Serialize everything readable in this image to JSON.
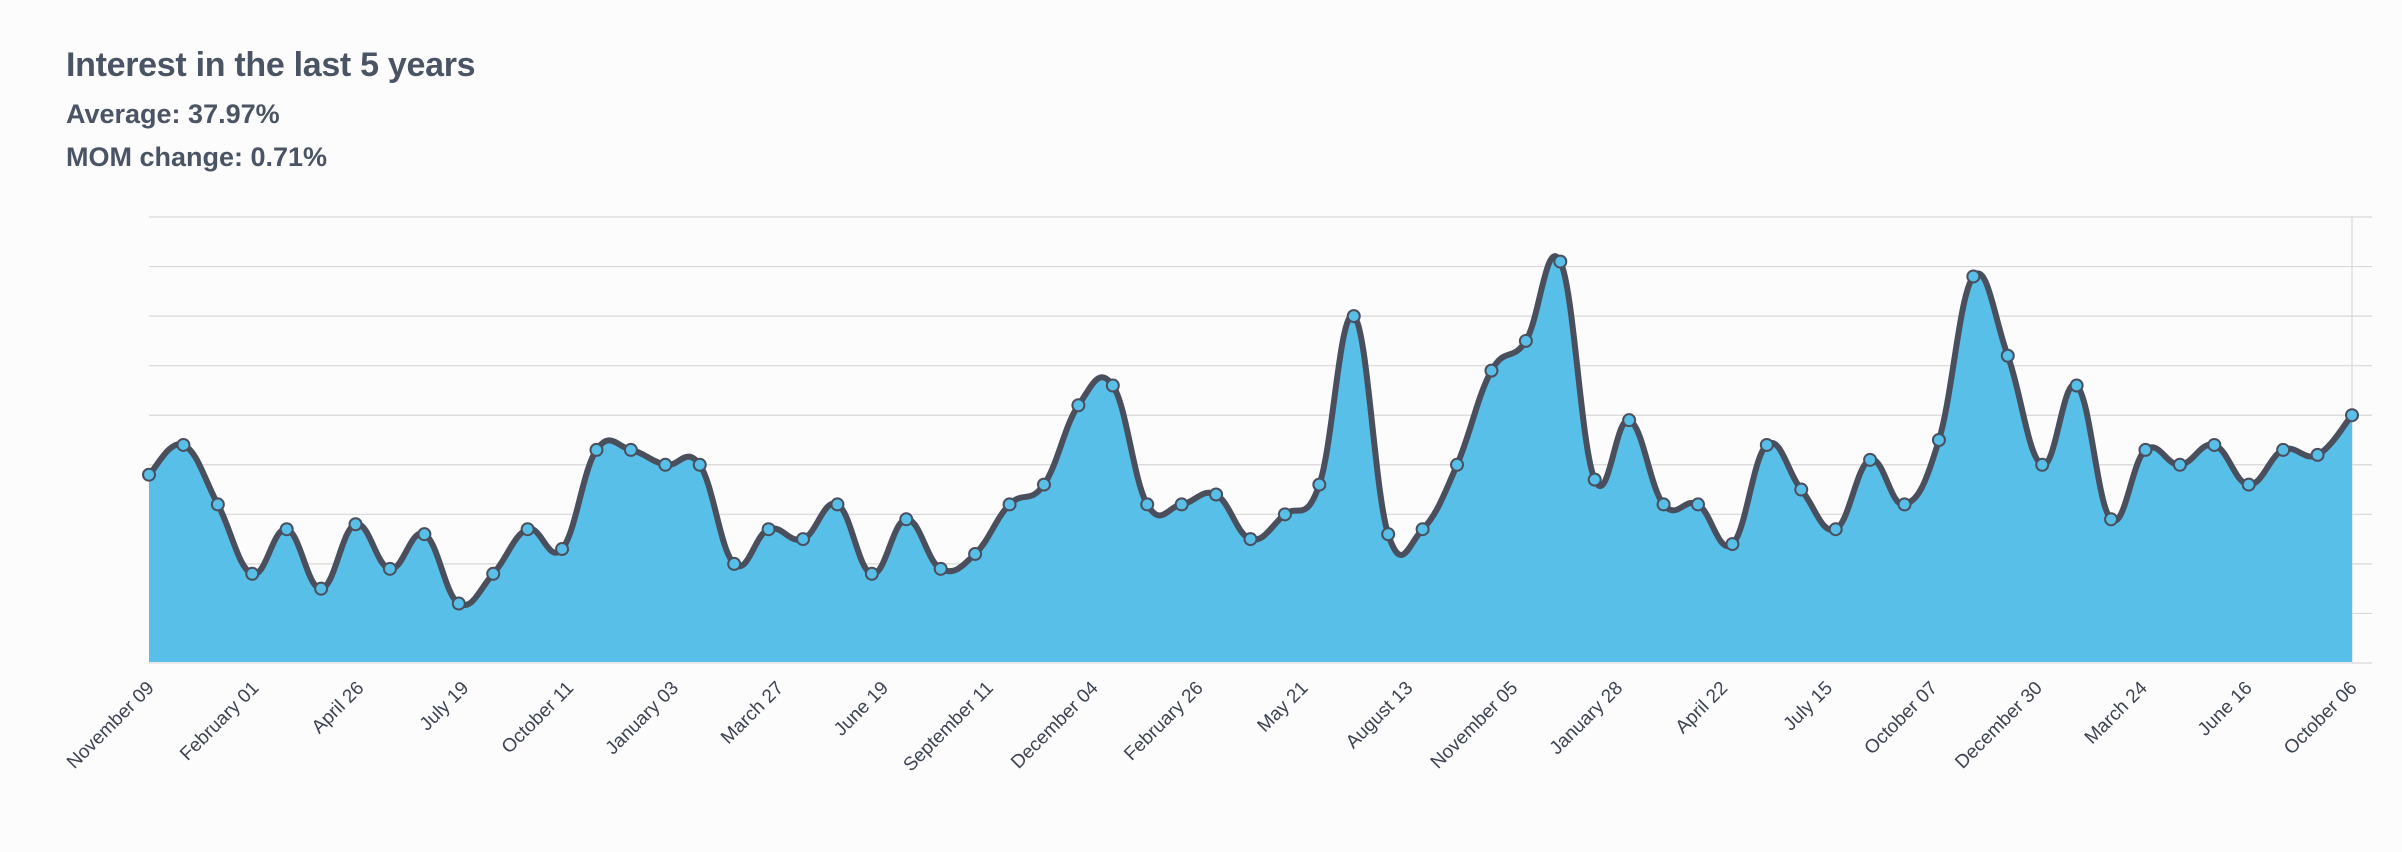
{
  "header": {
    "title": "Interest in the last 5 years",
    "average": "Average: 37.97%",
    "mom_change": "MOM change: 0.71%"
  },
  "colors": {
    "area": "#58bfe8",
    "line": "#4a4f5d",
    "marker": "#58bfe8",
    "grid": "#d8d8d8"
  },
  "chart_data": {
    "type": "area",
    "title": "Interest in the last 5 years",
    "xlabel": "",
    "ylabel": "",
    "ylim": [
      0,
      90
    ],
    "grid": true,
    "legend": "none",
    "tick_labels": [
      "November 09",
      "February 01",
      "April 26",
      "July 19",
      "October 11",
      "January 03",
      "March 27",
      "June 19",
      "September 11",
      "December 04",
      "February 26",
      "May 21",
      "August 13",
      "November 05",
      "January 28",
      "April 22",
      "July 15",
      "October 07",
      "December 30",
      "March 24",
      "June 16",
      "October 06"
    ],
    "series": [
      {
        "values": [
          38,
          44,
          32,
          18,
          27,
          15,
          28,
          19,
          26,
          12,
          18,
          27,
          23,
          43,
          43,
          40,
          40,
          20,
          27,
          25,
          32,
          18,
          29,
          19,
          22,
          32,
          36,
          52,
          56,
          32,
          32,
          34,
          25,
          30,
          36,
          70,
          26,
          27,
          40,
          59,
          65,
          81,
          37,
          49,
          32,
          32,
          24,
          44,
          35,
          27,
          41,
          32,
          45,
          78,
          62,
          40,
          56,
          29,
          43,
          40,
          44,
          36,
          43,
          42,
          50
        ]
      }
    ]
  }
}
